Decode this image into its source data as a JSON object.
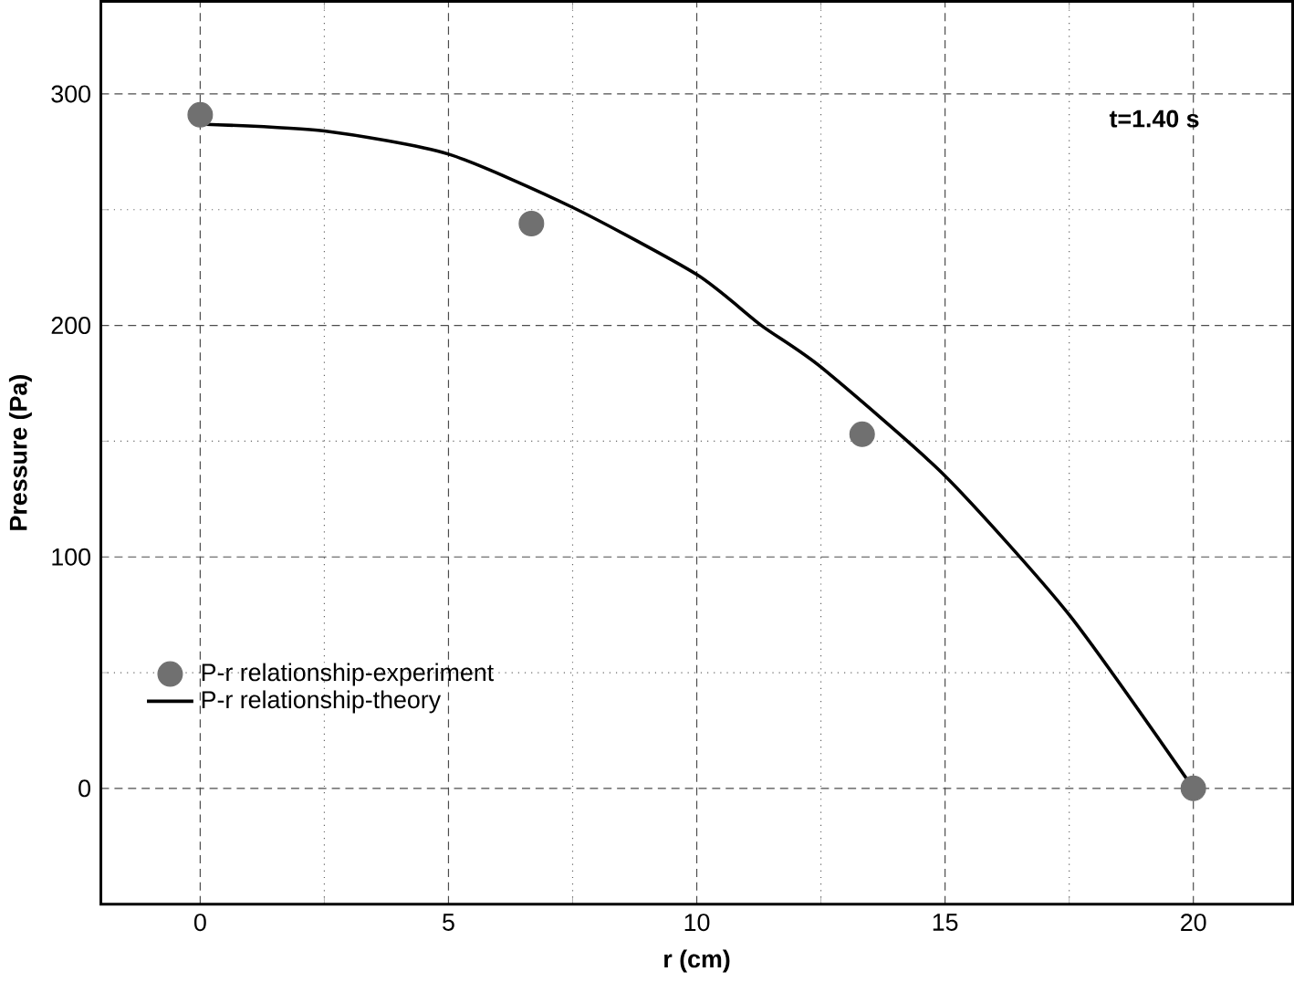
{
  "chart_data": {
    "type": "scatter",
    "xlabel": "r (cm)",
    "ylabel": "Pressure (Pa)",
    "xlim": [
      -2,
      22
    ],
    "ylim": [
      -50,
      340
    ],
    "xticks": [
      0,
      5,
      10,
      15,
      20
    ],
    "yticks": [
      0,
      100,
      200,
      300
    ],
    "grid": true,
    "legend": "bottom left",
    "annotations": [
      "t=1.40 s"
    ],
    "series": [
      {
        "name": "P-r relationship-experiment",
        "marker": "circle",
        "color": "#707070",
        "x": [
          0,
          6.67,
          13.33,
          20
        ],
        "values": [
          291,
          244,
          153,
          0
        ]
      },
      {
        "name": "P-r relationship-theory",
        "type": "line",
        "color": "#000000",
        "x": [
          0,
          2.5,
          5,
          7.5,
          10,
          11.3,
          12.5,
          15,
          17.5,
          20
        ],
        "values": [
          287,
          284,
          274,
          251,
          222,
          200,
          182,
          135,
          75,
          0
        ]
      }
    ]
  }
}
